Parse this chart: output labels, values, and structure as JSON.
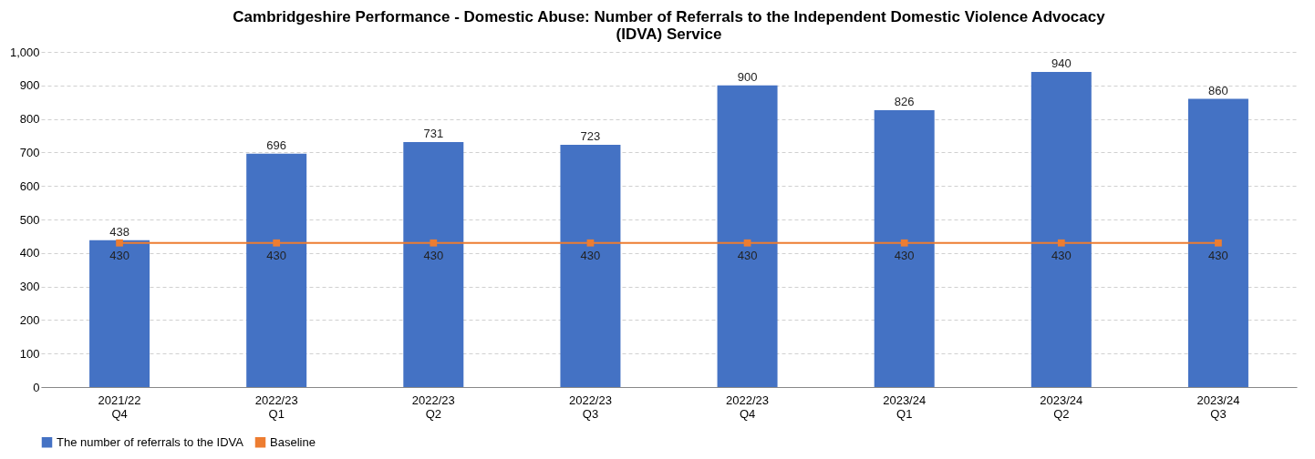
{
  "chart_data": {
    "type": "bar",
    "title": "Cambridgeshire Performance - Domestic Abuse: Number of Referrals to the Independent Domestic Violence Advocacy (IDVA) Service",
    "categories": [
      "2021/22\nQ4",
      "2022/23\nQ1",
      "2022/23\nQ2",
      "2022/23\nQ3",
      "2022/23\nQ4",
      "2023/24\nQ1",
      "2023/24\nQ2",
      "2023/24\nQ3"
    ],
    "series": [
      {
        "name": "The number of referrals to the IDVA",
        "color": "#4472c4",
        "values": [
          438,
          696,
          731,
          723,
          900,
          826,
          940,
          860
        ]
      },
      {
        "name": "Baseline",
        "type": "line",
        "color": "#ed7d31",
        "marker": "square",
        "values": [
          430,
          430,
          430,
          430,
          430,
          430,
          430,
          430
        ]
      }
    ],
    "ylim": [
      0,
      1000
    ],
    "yticks": [
      0,
      100,
      200,
      300,
      400,
      500,
      600,
      700,
      800,
      900,
      {
        "value": 1000,
        "label": "1,000"
      }
    ],
    "grid": "y",
    "legend": "bottom",
    "data_labels": true
  }
}
